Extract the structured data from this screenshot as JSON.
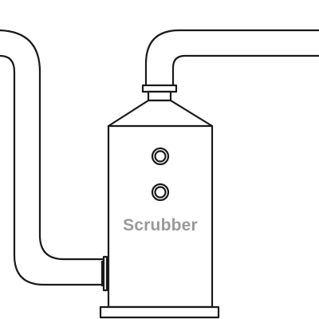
{
  "diagram": {
    "vessel_label": "Scrubber"
  },
  "colors": {
    "line": "#1a1a1a",
    "label": "#9a9a9a",
    "background": "#ffffff"
  }
}
